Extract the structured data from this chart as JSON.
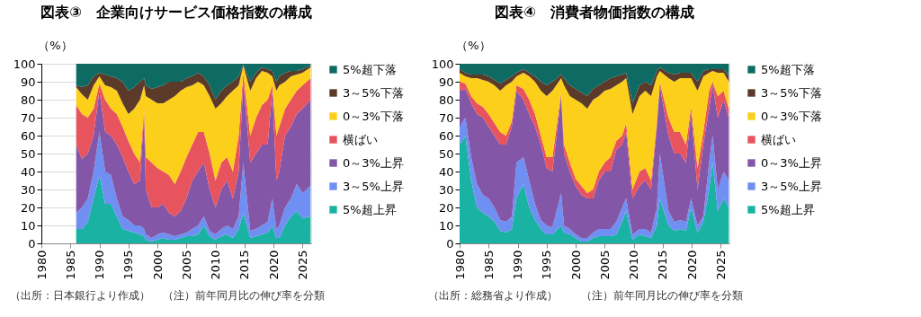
{
  "chart_data": [
    {
      "type": "area",
      "title": "図表③　企業向けサービス価格指数の構成",
      "ylabel": "（%）",
      "stacked": true,
      "grid": "y",
      "legend": "right",
      "xlim": [
        1980,
        2026.5
      ],
      "xticks": [
        1980,
        1985,
        1990,
        1995,
        2000,
        2005,
        2010,
        2015,
        2020,
        2025
      ],
      "ylim": [
        0,
        100
      ],
      "yticks": [
        0,
        10,
        20,
        30,
        40,
        50,
        60,
        70,
        80,
        90,
        100
      ],
      "x": [
        1986,
        1987,
        1988,
        1989,
        1990,
        1991,
        1992,
        1993,
        1994,
        1995,
        1996,
        1997,
        1997.7,
        1998,
        1999,
        2000,
        2001,
        2002,
        2003,
        2004,
        2005,
        2006,
        2007,
        2008,
        2009,
        2010,
        2011,
        2012,
        2013,
        2014,
        2014.8,
        2016,
        2017,
        2018,
        2019,
        2019.8,
        2020.5,
        2021,
        2022,
        2023,
        2024,
        2025,
        2026.4
      ],
      "series": [
        {
          "name": "5%超上昇",
          "color": "#1ab3a3",
          "values": [
            8,
            8,
            12,
            25,
            38,
            22,
            22,
            15,
            8,
            7,
            6,
            5,
            4,
            2,
            1,
            2,
            3,
            2,
            2,
            3,
            4,
            4,
            5,
            10,
            4,
            2,
            4,
            5,
            3,
            8,
            17,
            3,
            4,
            5,
            6,
            10,
            3,
            3,
            10,
            15,
            18,
            14,
            15
          ]
        },
        {
          "name": "3～5%上昇",
          "color": "#6f8ff3",
          "values": [
            9,
            12,
            13,
            15,
            24,
            18,
            16,
            10,
            7,
            6,
            4,
            5,
            4,
            3,
            2,
            3,
            3,
            3,
            2,
            2,
            2,
            4,
            5,
            5,
            3,
            3,
            4,
            5,
            5,
            7,
            28,
            4,
            4,
            5,
            6,
            15,
            5,
            7,
            10,
            10,
            15,
            14,
            17
          ]
        },
        {
          "name": "0～3%上昇",
          "color": "#8456a7",
          "values": [
            38,
            27,
            25,
            20,
            23,
            22,
            22,
            30,
            33,
            27,
            23,
            25,
            64,
            25,
            17,
            15,
            16,
            12,
            11,
            13,
            19,
            27,
            30,
            30,
            23,
            15,
            22,
            25,
            17,
            25,
            45,
            38,
            42,
            45,
            43,
            60,
            27,
            30,
            40,
            40,
            39,
            47,
            48
          ]
        },
        {
          "name": "横ばい",
          "color": "#e8545e",
          "values": [
            22,
            25,
            20,
            15,
            4,
            18,
            15,
            17,
            17,
            17,
            17,
            10,
            3,
            18,
            25,
            22,
            18,
            21,
            18,
            22,
            23,
            20,
            22,
            17,
            20,
            15,
            15,
            13,
            15,
            20,
            5,
            15,
            20,
            22,
            25,
            3,
            25,
            25,
            15,
            15,
            13,
            13,
            12
          ]
        },
        {
          "name": "0～3%下落",
          "color": "#fccf1a",
          "values": [
            10,
            11,
            10,
            13,
            4,
            8,
            12,
            13,
            13,
            15,
            25,
            35,
            13,
            34,
            35,
            36,
            38,
            42,
            49,
            45,
            39,
            33,
            28,
            26,
            32,
            40,
            33,
            34,
            45,
            28,
            4,
            25,
            22,
            19,
            15,
            5,
            25,
            23,
            15,
            13,
            9,
            7,
            6
          ]
        },
        {
          "name": "3～5%下落",
          "color": "#5b3a29",
          "values": [
            1,
            4,
            8,
            5,
            2,
            6,
            6,
            7,
            12,
            13,
            12,
            10,
            4,
            6,
            6,
            9,
            10,
            10,
            8,
            5,
            5,
            5,
            5,
            5,
            6,
            5,
            7,
            6,
            5,
            5,
            0.5,
            5,
            3,
            2,
            2,
            3,
            5,
            5,
            5,
            3,
            2,
            2,
            1
          ]
        },
        {
          "name": "5%超下落",
          "color": "#0e6b63",
          "values": [
            12,
            13,
            12,
            7,
            5,
            6,
            7,
            8,
            10,
            15,
            13,
            10,
            8,
            12,
            14,
            13,
            12,
            10,
            10,
            10,
            8,
            7,
            5,
            7,
            12,
            20,
            15,
            12,
            10,
            7,
            0.5,
            10,
            5,
            2,
            3,
            4,
            10,
            7,
            5,
            4,
            4,
            3,
            1
          ]
        }
      ],
      "annotations": [
        "（出所：日本銀行より作成）",
        "（注）前年同月比の伸び率を分類"
      ]
    },
    {
      "type": "area",
      "title": "図表④　消費者物価指数の構成",
      "ylabel": "（%）",
      "stacked": true,
      "grid": "y",
      "legend": "right",
      "xlim": [
        1980,
        2026.5
      ],
      "xticks": [
        1980,
        1985,
        1990,
        1995,
        2000,
        2005,
        2010,
        2015,
        2020,
        2025
      ],
      "ylim": [
        0,
        100
      ],
      "yticks": [
        0,
        10,
        20,
        30,
        40,
        50,
        60,
        70,
        80,
        90,
        100
      ],
      "x": [
        1980,
        1981,
        1982,
        1983,
        1984,
        1985,
        1986,
        1987,
        1988,
        1989,
        1989.8,
        1991,
        1992,
        1993,
        1994,
        1995,
        1996,
        1997.5,
        1998,
        1999,
        2000,
        2001,
        2002,
        2003,
        2004,
        2005,
        2006,
        2007,
        2008,
        2008.7,
        2009.8,
        2011,
        2012,
        2013,
        2014,
        2014.5,
        2016,
        2017,
        2018,
        2019,
        2019.9,
        2021,
        2022,
        2023,
        2023.6,
        2024.5,
        2025.5,
        2026.4
      ],
      "series": [
        {
          "name": "5%超上昇",
          "color": "#1ab3a3",
          "values": [
            55,
            60,
            35,
            20,
            17,
            15,
            12,
            7,
            6,
            8,
            25,
            33,
            20,
            13,
            8,
            5,
            5,
            10,
            6,
            5,
            3,
            1,
            1,
            3,
            4,
            4,
            4,
            5,
            12,
            18,
            2,
            5,
            4,
            3,
            10,
            25,
            10,
            7,
            8,
            7,
            20,
            6,
            12,
            30,
            45,
            18,
            25,
            20
          ]
        },
        {
          "name": "3～5%上昇",
          "color": "#6f8ff3",
          "values": [
            10,
            10,
            13,
            13,
            10,
            10,
            8,
            6,
            6,
            7,
            20,
            15,
            15,
            9,
            5,
            5,
            4,
            18,
            4,
            3,
            2,
            2,
            2,
            3,
            4,
            4,
            4,
            7,
            8,
            7,
            3,
            3,
            4,
            3,
            10,
            25,
            8,
            5,
            5,
            5,
            5,
            4,
            3,
            15,
            15,
            12,
            15,
            15
          ]
        },
        {
          "name": "0～3%上昇",
          "color": "#8456a7",
          "values": [
            20,
            16,
            30,
            39,
            43,
            40,
            40,
            42,
            43,
            50,
            40,
            32,
            37,
            43,
            42,
            32,
            31,
            54,
            40,
            32,
            27,
            24,
            22,
            19,
            27,
            32,
            32,
            40,
            35,
            37,
            20,
            24,
            27,
            24,
            45,
            38,
            42,
            38,
            37,
            33,
            48,
            20,
            40,
            30,
            28,
            40,
            40,
            35
          ]
        },
        {
          "name": "横ばい",
          "color": "#e8545e",
          "values": [
            5,
            3,
            4,
            6,
            6,
            7,
            7,
            7,
            5,
            3,
            3,
            6,
            8,
            7,
            5,
            6,
            8,
            2,
            5,
            5,
            4,
            5,
            3,
            5,
            5,
            5,
            8,
            5,
            5,
            5,
            5,
            8,
            7,
            5,
            3,
            2,
            10,
            12,
            12,
            10,
            3,
            12,
            7,
            10,
            2,
            12,
            5,
            5
          ]
        },
        {
          "name": "0～3%下落",
          "color": "#fccf1a",
          "values": [
            5,
            4,
            10,
            14,
            15,
            18,
            21,
            23,
            28,
            22,
            5,
            9,
            13,
            18,
            25,
            34,
            37,
            8,
            33,
            37,
            44,
            46,
            47,
            50,
            42,
            40,
            38,
            31,
            30,
            25,
            42,
            42,
            43,
            47,
            25,
            6,
            22,
            28,
            30,
            37,
            16,
            43,
            31,
            10,
            6,
            13,
            10,
            15
          ]
        },
        {
          "name": "3～5%下落",
          "color": "#5b3a29",
          "values": [
            2,
            2,
            2,
            2,
            3,
            3,
            3,
            4,
            3,
            3,
            2,
            2,
            2,
            3,
            5,
            6,
            5,
            2,
            4,
            6,
            6,
            6,
            7,
            6,
            6,
            5,
            6,
            5,
            4,
            3,
            6,
            6,
            5,
            6,
            3,
            2,
            3,
            4,
            3,
            3,
            3,
            5,
            3,
            2,
            1,
            2,
            2,
            3
          ]
        },
        {
          "name": "5%超下落",
          "color": "#0e6b63",
          "values": [
            3,
            5,
            6,
            6,
            6,
            7,
            9,
            11,
            9,
            7,
            5,
            3,
            5,
            7,
            10,
            12,
            10,
            6,
            8,
            12,
            14,
            16,
            18,
            14,
            12,
            10,
            8,
            7,
            6,
            5,
            22,
            12,
            10,
            12,
            4,
            2,
            5,
            6,
            5,
            5,
            5,
            10,
            4,
            3,
            3,
            3,
            3,
            7
          ]
        }
      ],
      "annotations": [
        "（出所：総務省より作成）",
        "（注）前年同月比の伸び率を分類"
      ]
    }
  ]
}
